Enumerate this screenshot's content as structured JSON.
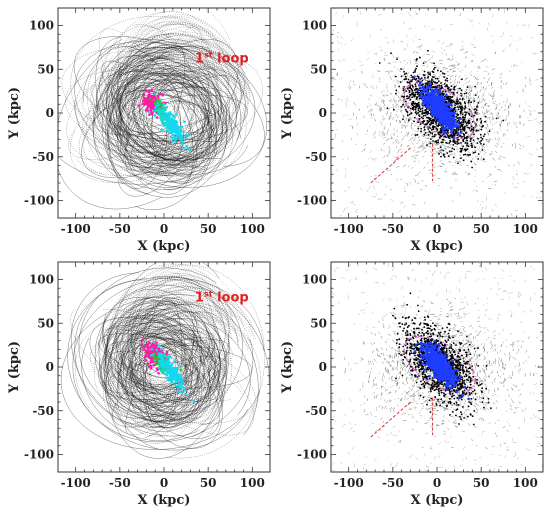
{
  "colors": {
    "orbits": "#111111",
    "stream_magenta": "#ff1aa8",
    "stream_green": "#22cc22",
    "stream_cyan": "#12d8f0",
    "disk_blue": "#1f3cff",
    "halo_pink": "#d060c0",
    "arrow_red": "#e03030",
    "annotation": "#e02020",
    "frame": "#333333"
  },
  "chart_data": [
    {
      "type": "scatter",
      "panel": "top-left",
      "xlabel": "X (kpc)",
      "ylabel": "Y (kpc)",
      "xlim": [
        -120,
        120
      ],
      "ylim": [
        -120,
        120
      ],
      "xticks": [
        -100,
        -50,
        0,
        50,
        100
      ],
      "yticks": [
        100,
        50,
        0,
        -50,
        -100
      ],
      "annotation": {
        "text": "1",
        "sup": "st",
        "suffix": " loop",
        "x": 35,
        "y": 58
      },
      "clusters": [
        {
          "color": "magenta",
          "center": [
            -12,
            10
          ]
        },
        {
          "color": "green",
          "center": [
            -4,
            4
          ]
        },
        {
          "color": "cyan",
          "center": [
            8,
            -12
          ]
        }
      ]
    },
    {
      "type": "scatter",
      "panel": "top-right",
      "xlabel": "X (kpc)",
      "ylabel": "Y (kpc)",
      "xlim": [
        -120,
        120
      ],
      "ylim": [
        -120,
        120
      ],
      "xticks": [
        -100,
        -50,
        0,
        50,
        100
      ],
      "yticks": [
        100,
        50,
        0,
        -50,
        -100
      ],
      "clusters": [
        {
          "color": "blue",
          "center": [
            3,
            5
          ]
        }
      ]
    },
    {
      "type": "scatter",
      "panel": "bottom-left",
      "xlabel": "X (kpc)",
      "ylabel": "Y (kpc)",
      "xlim": [
        -120,
        120
      ],
      "ylim": [
        -120,
        120
      ],
      "xticks": [
        -100,
        -50,
        0,
        50,
        100
      ],
      "yticks": [
        100,
        50,
        0,
        -50,
        -100
      ],
      "annotation": {
        "text": "1",
        "sup": "st",
        "suffix": " loop",
        "x": 35,
        "y": 75
      },
      "clusters": [
        {
          "color": "magenta",
          "center": [
            -10,
            12
          ]
        },
        {
          "color": "green",
          "center": [
            -2,
            5
          ]
        },
        {
          "color": "cyan",
          "center": [
            8,
            -5
          ]
        }
      ]
    },
    {
      "type": "scatter",
      "panel": "bottom-right",
      "xlabel": "X (kpc)",
      "ylabel": "Y (kpc)",
      "xlim": [
        -120,
        120
      ],
      "ylim": [
        -120,
        120
      ],
      "xticks": [
        -100,
        -50,
        0,
        50,
        100
      ],
      "yticks": [
        100,
        50,
        0,
        -50,
        -100
      ],
      "clusters": [
        {
          "color": "blue",
          "center": [
            3,
            2
          ]
        }
      ]
    }
  ]
}
